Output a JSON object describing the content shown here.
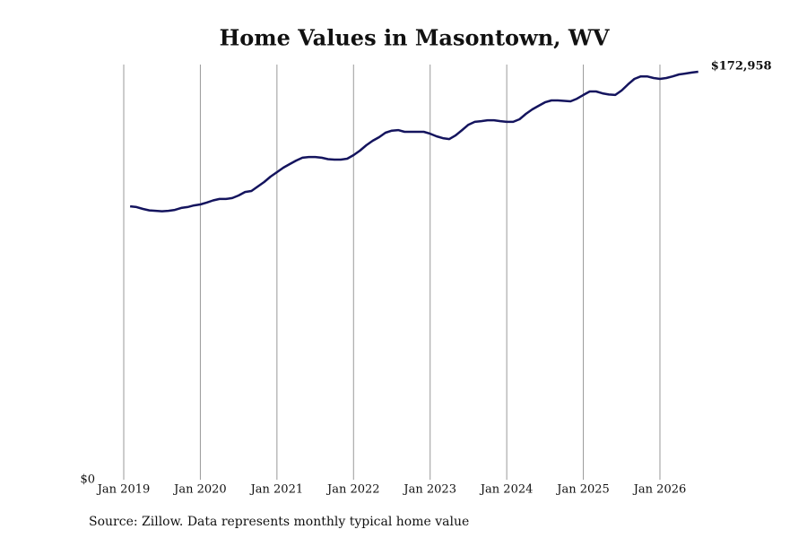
{
  "chart_data": {
    "type": "line",
    "title": "Home Values in Masontown, WV",
    "source": "Source: Zillow. Data represents monthly typical home value",
    "x": [
      "2019-02",
      "2019-03",
      "2019-04",
      "2019-05",
      "2019-06",
      "2019-07",
      "2019-08",
      "2019-09",
      "2019-10",
      "2019-11",
      "2019-12",
      "2020-01",
      "2020-02",
      "2020-03",
      "2020-04",
      "2020-05",
      "2020-06",
      "2020-07",
      "2020-08",
      "2020-09",
      "2020-10",
      "2020-11",
      "2020-12",
      "2021-01",
      "2021-02",
      "2021-03",
      "2021-04",
      "2021-05",
      "2021-06",
      "2021-07",
      "2021-08",
      "2021-09",
      "2021-10",
      "2021-11",
      "2021-12",
      "2022-01",
      "2022-02",
      "2022-03",
      "2022-04",
      "2022-05",
      "2022-06",
      "2022-07",
      "2022-08",
      "2022-09",
      "2022-10",
      "2022-11",
      "2022-12",
      "2023-01",
      "2023-02",
      "2023-03",
      "2023-04",
      "2023-05",
      "2023-06",
      "2023-07",
      "2023-08",
      "2023-09",
      "2023-10",
      "2023-11",
      "2023-12",
      "2024-01",
      "2024-02",
      "2024-03",
      "2024-04",
      "2024-05",
      "2024-06",
      "2024-07",
      "2024-08",
      "2024-09",
      "2024-10",
      "2024-11",
      "2024-12",
      "2025-01",
      "2025-02",
      "2025-03",
      "2025-04",
      "2025-05",
      "2025-06",
      "2025-07",
      "2025-08",
      "2025-09",
      "2025-10",
      "2025-11",
      "2025-12",
      "2026-01",
      "2026-02",
      "2026-03",
      "2026-04",
      "2026-05",
      "2026-06",
      "2026-07"
    ],
    "series": [
      {
        "name": "Home value",
        "color": "#14145e",
        "values": [
          115900,
          115600,
          114800,
          114200,
          114000,
          113800,
          114000,
          114400,
          115200,
          115600,
          116300,
          116700,
          117500,
          118400,
          119000,
          119000,
          119400,
          120500,
          122000,
          122400,
          124300,
          126200,
          128500,
          130400,
          132300,
          133800,
          135300,
          136500,
          136800,
          136800,
          136500,
          135900,
          135700,
          135700,
          136100,
          137600,
          139500,
          141800,
          143700,
          145200,
          147100,
          148000,
          148200,
          147500,
          147500,
          147500,
          147500,
          146700,
          145600,
          144800,
          144400,
          146000,
          148200,
          150500,
          151700,
          152000,
          152400,
          152400,
          152000,
          151700,
          151700,
          152800,
          155100,
          157000,
          158500,
          160000,
          160800,
          160800,
          160600,
          160400,
          161500,
          163100,
          164600,
          164600,
          163800,
          163300,
          163100,
          165000,
          167600,
          169900,
          171000,
          171000,
          170300,
          169900,
          170300,
          171000,
          171800,
          172200,
          172600,
          172958
        ],
        "value_labels": [
          null,
          null,
          null,
          null,
          null,
          null,
          null,
          null,
          null,
          null,
          null,
          null,
          null,
          null,
          null,
          null,
          null,
          null,
          null,
          null,
          null,
          null,
          null,
          null,
          null,
          null,
          null,
          null,
          null,
          null,
          null,
          null,
          null,
          null,
          null,
          null,
          null,
          null,
          null,
          null,
          null,
          null,
          null,
          null,
          null,
          null,
          null,
          null,
          null,
          null,
          null,
          null,
          null,
          null,
          null,
          null,
          null,
          null,
          null,
          null,
          null,
          null,
          null,
          null,
          null,
          null,
          null,
          null,
          null,
          null,
          null,
          null,
          null,
          null,
          null,
          null,
          null,
          null,
          null,
          null,
          null,
          null,
          null,
          null,
          null,
          null,
          null,
          null,
          null,
          "$172,958"
        ]
      }
    ],
    "xlim": [
      "2019-01",
      "2026-07"
    ],
    "xticks": [
      {
        "value": "2019-01",
        "label": "Jan 2019"
      },
      {
        "value": "2020-01",
        "label": "Jan 2020"
      },
      {
        "value": "2021-01",
        "label": "Jan 2021"
      },
      {
        "value": "2022-01",
        "label": "Jan 2022"
      },
      {
        "value": "2023-01",
        "label": "Jan 2023"
      },
      {
        "value": "2024-01",
        "label": "Jan 2024"
      },
      {
        "value": "2025-01",
        "label": "Jan 2025"
      },
      {
        "value": "2026-01",
        "label": "Jan 2026"
      }
    ],
    "ylim": [
      0,
      176000
    ],
    "yticks": [
      {
        "value": 0,
        "label": "$0"
      }
    ],
    "grid": "x"
  }
}
